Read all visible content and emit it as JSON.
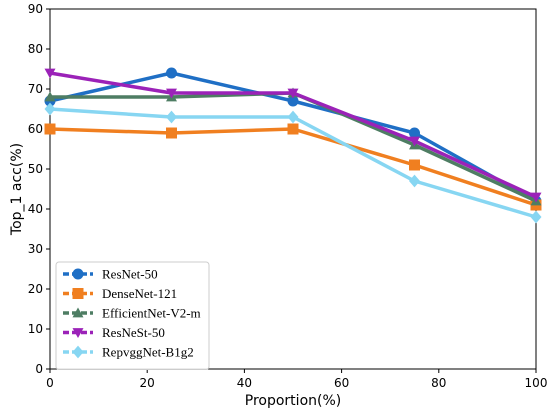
{
  "chart_data": {
    "type": "line",
    "xlabel": "Proportion(%)",
    "ylabel": "Top_1 acc(%)",
    "xlim": [
      0,
      100
    ],
    "ylim": [
      0,
      90
    ],
    "xticks": [
      0,
      20,
      40,
      60,
      80,
      100
    ],
    "yticks": [
      0,
      10,
      20,
      30,
      40,
      50,
      60,
      70,
      80,
      90
    ],
    "grid": false,
    "legend_position": "lower-left",
    "x": [
      0,
      25,
      50,
      75,
      100
    ],
    "series": [
      {
        "name": "ResNet-50",
        "values": [
          67,
          74,
          67,
          59,
          42
        ],
        "color": "#1f6fc5",
        "marker": "circle"
      },
      {
        "name": "DenseNet-121",
        "values": [
          60,
          59,
          60,
          51,
          41
        ],
        "color": "#f07f20",
        "marker": "square"
      },
      {
        "name": "EfficientNet-V2-m",
        "values": [
          68,
          68,
          69,
          56,
          42
        ],
        "color": "#4e7d63",
        "marker": "triangle-up"
      },
      {
        "name": "ResNeSt-50",
        "values": [
          74,
          69,
          69,
          57,
          43
        ],
        "color": "#9b22b8",
        "marker": "triangle-down"
      },
      {
        "name": "RepvggNet-B1g2",
        "values": [
          65,
          63,
          63,
          47,
          38
        ],
        "color": "#87d6f2",
        "marker": "diamond"
      }
    ]
  }
}
